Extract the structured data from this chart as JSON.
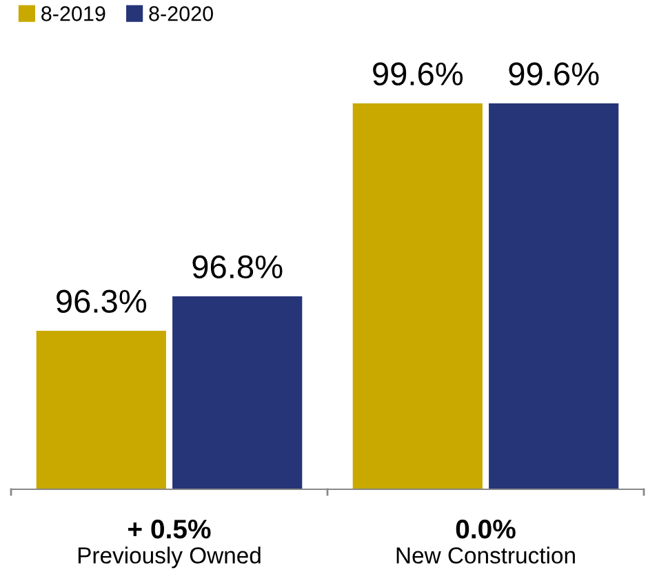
{
  "chart_data": {
    "type": "bar",
    "categories": [
      "Previously Owned",
      "New Construction"
    ],
    "series": [
      {
        "name": "8-2019",
        "color": "#c9a800",
        "values": [
          96.3,
          99.6
        ],
        "value_labels": [
          "96.3%",
          "99.6%"
        ]
      },
      {
        "name": "8-2020",
        "color": "#263478",
        "values": [
          96.8,
          99.6
        ],
        "value_labels": [
          "96.8%",
          "99.6%"
        ]
      }
    ],
    "annotations": [
      "+ 0.5%",
      "0.0%"
    ],
    "ylim": [
      94,
      101
    ],
    "tick_labels": "x",
    "legend": "top left",
    "grid": false
  }
}
